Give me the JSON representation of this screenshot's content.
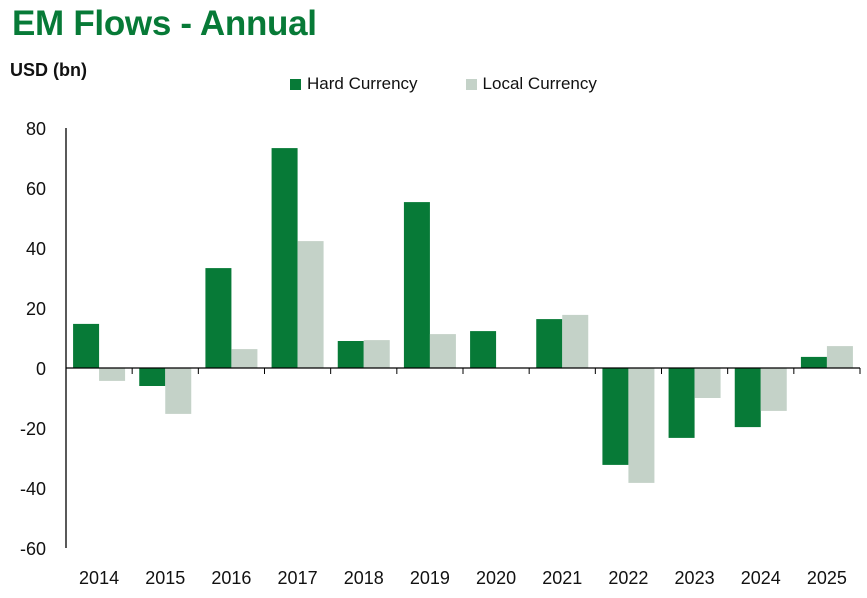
{
  "chart_data": {
    "type": "bar",
    "title": "EM Flows - Annual",
    "ylabel": "USD (bn)",
    "xlabel": "",
    "ylim": [
      -60,
      80
    ],
    "yticks": [
      80,
      60,
      40,
      20,
      0,
      -20,
      -40,
      -60
    ],
    "grid": false,
    "legend_position": "top-center",
    "categories": [
      "2014",
      "2015",
      "2016",
      "2017",
      "2018",
      "2019",
      "2020",
      "2021",
      "2022",
      "2023",
      "2024",
      "2025"
    ],
    "series": [
      {
        "name": "Hard Currency",
        "color": "#077a37",
        "values": [
          14.7,
          -6.0,
          33.3,
          73.3,
          9.0,
          55.3,
          12.3,
          16.3,
          -32.3,
          -23.3,
          -19.7,
          3.7
        ]
      },
      {
        "name": "Local Currency",
        "color": "#c4d2c8",
        "values": [
          -4.3,
          -15.3,
          6.3,
          42.3,
          9.3,
          11.3,
          0,
          17.7,
          -38.3,
          -10.0,
          -14.3,
          7.3
        ]
      }
    ]
  }
}
